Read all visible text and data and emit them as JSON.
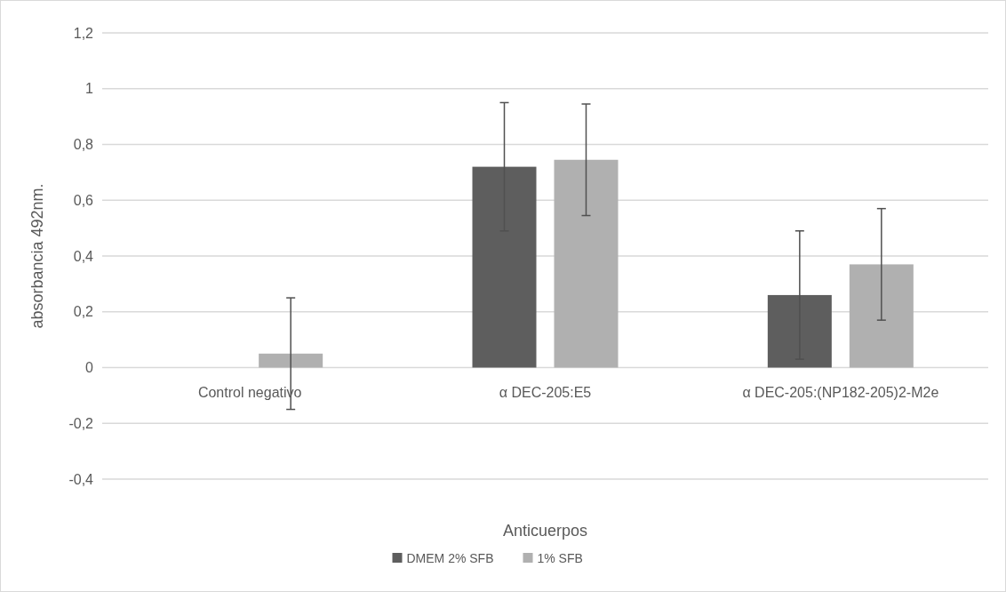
{
  "chart_data": {
    "type": "bar",
    "xlabel": "Anticuerpos",
    "ylabel": "absorbancia 492nm.",
    "categories": [
      "Control negativo",
      "α DEC-205:E5",
      "α DEC-205:(NP182-205)2-M2e"
    ],
    "series": [
      {
        "name": "DMEM 2% SFB",
        "color": "#5e5e5e",
        "values": [
          null,
          0.72,
          0.26
        ],
        "errors": [
          null,
          0.23,
          0.23
        ]
      },
      {
        "name": "1% SFB",
        "color": "#b0b0b0",
        "values": [
          0.05,
          0.745,
          0.37
        ],
        "errors": [
          0.2,
          0.2,
          0.2
        ]
      }
    ],
    "ylim": [
      -0.4,
      1.2
    ],
    "yticks": [
      {
        "value": -0.4,
        "label": "-0,4"
      },
      {
        "value": -0.2,
        "label": "-0,2"
      },
      {
        "value": 0,
        "label": "0"
      },
      {
        "value": 0.2,
        "label": "0,2"
      },
      {
        "value": 0.4,
        "label": "0,4"
      },
      {
        "value": 0.6,
        "label": "0,6"
      },
      {
        "value": 0.8,
        "label": "0,8"
      },
      {
        "value": 1,
        "label": "1"
      },
      {
        "value": 1.2,
        "label": "1,2"
      }
    ],
    "grid": "y",
    "legend": "bottom"
  }
}
